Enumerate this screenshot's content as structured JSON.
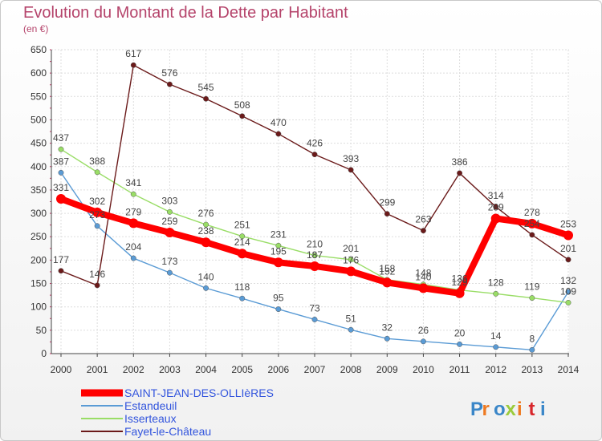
{
  "title": "Evolution du Montant de la Dette par Habitant",
  "unit": "(en €)",
  "brand": [
    "P",
    "r",
    "o",
    "x",
    "i",
    "t",
    "i"
  ],
  "brand_colors": [
    "#3a86c8",
    "#ee7a22",
    "#3a86c8",
    "#9bcb3c",
    "#ee7a22",
    "#d8262b",
    "#3a86c8"
  ],
  "chart_data": {
    "type": "line",
    "title": "Evolution du Montant de la Dette par Habitant",
    "ylabel": "(en €)",
    "x": [
      2000,
      2001,
      2002,
      2003,
      2004,
      2005,
      2006,
      2007,
      2008,
      2009,
      2010,
      2011,
      2012,
      2013,
      2014
    ],
    "ylim": [
      0,
      650
    ],
    "yticks": [
      0,
      50,
      100,
      150,
      200,
      250,
      300,
      350,
      400,
      450,
      500,
      550,
      600,
      650
    ],
    "grid": true,
    "legend_position": "bottom-left",
    "series": [
      {
        "name": "SAINT-JEAN-DES-OLLIèRES",
        "color": "#ff0000",
        "values": [
          331,
          302,
          279,
          259,
          238,
          214,
          195,
          187,
          176,
          152,
          140,
          129,
          289,
          278,
          253
        ]
      },
      {
        "name": "Estandeuil",
        "color": "#5a9bd5",
        "values": [
          387,
          273,
          204,
          173,
          140,
          118,
          95,
          73,
          51,
          32,
          26,
          20,
          14,
          8,
          132
        ]
      },
      {
        "name": "Isserteaux",
        "color": "#99dd66",
        "values": [
          437,
          388,
          341,
          303,
          276,
          251,
          231,
          210,
          201,
          158,
          148,
          136,
          128,
          119,
          109
        ]
      },
      {
        "name": "Fayet-le-Château",
        "color": "#6b1a1a",
        "values": [
          177,
          146,
          617,
          576,
          545,
          508,
          470,
          426,
          393,
          299,
          263,
          386,
          314,
          254,
          201
        ]
      }
    ]
  }
}
